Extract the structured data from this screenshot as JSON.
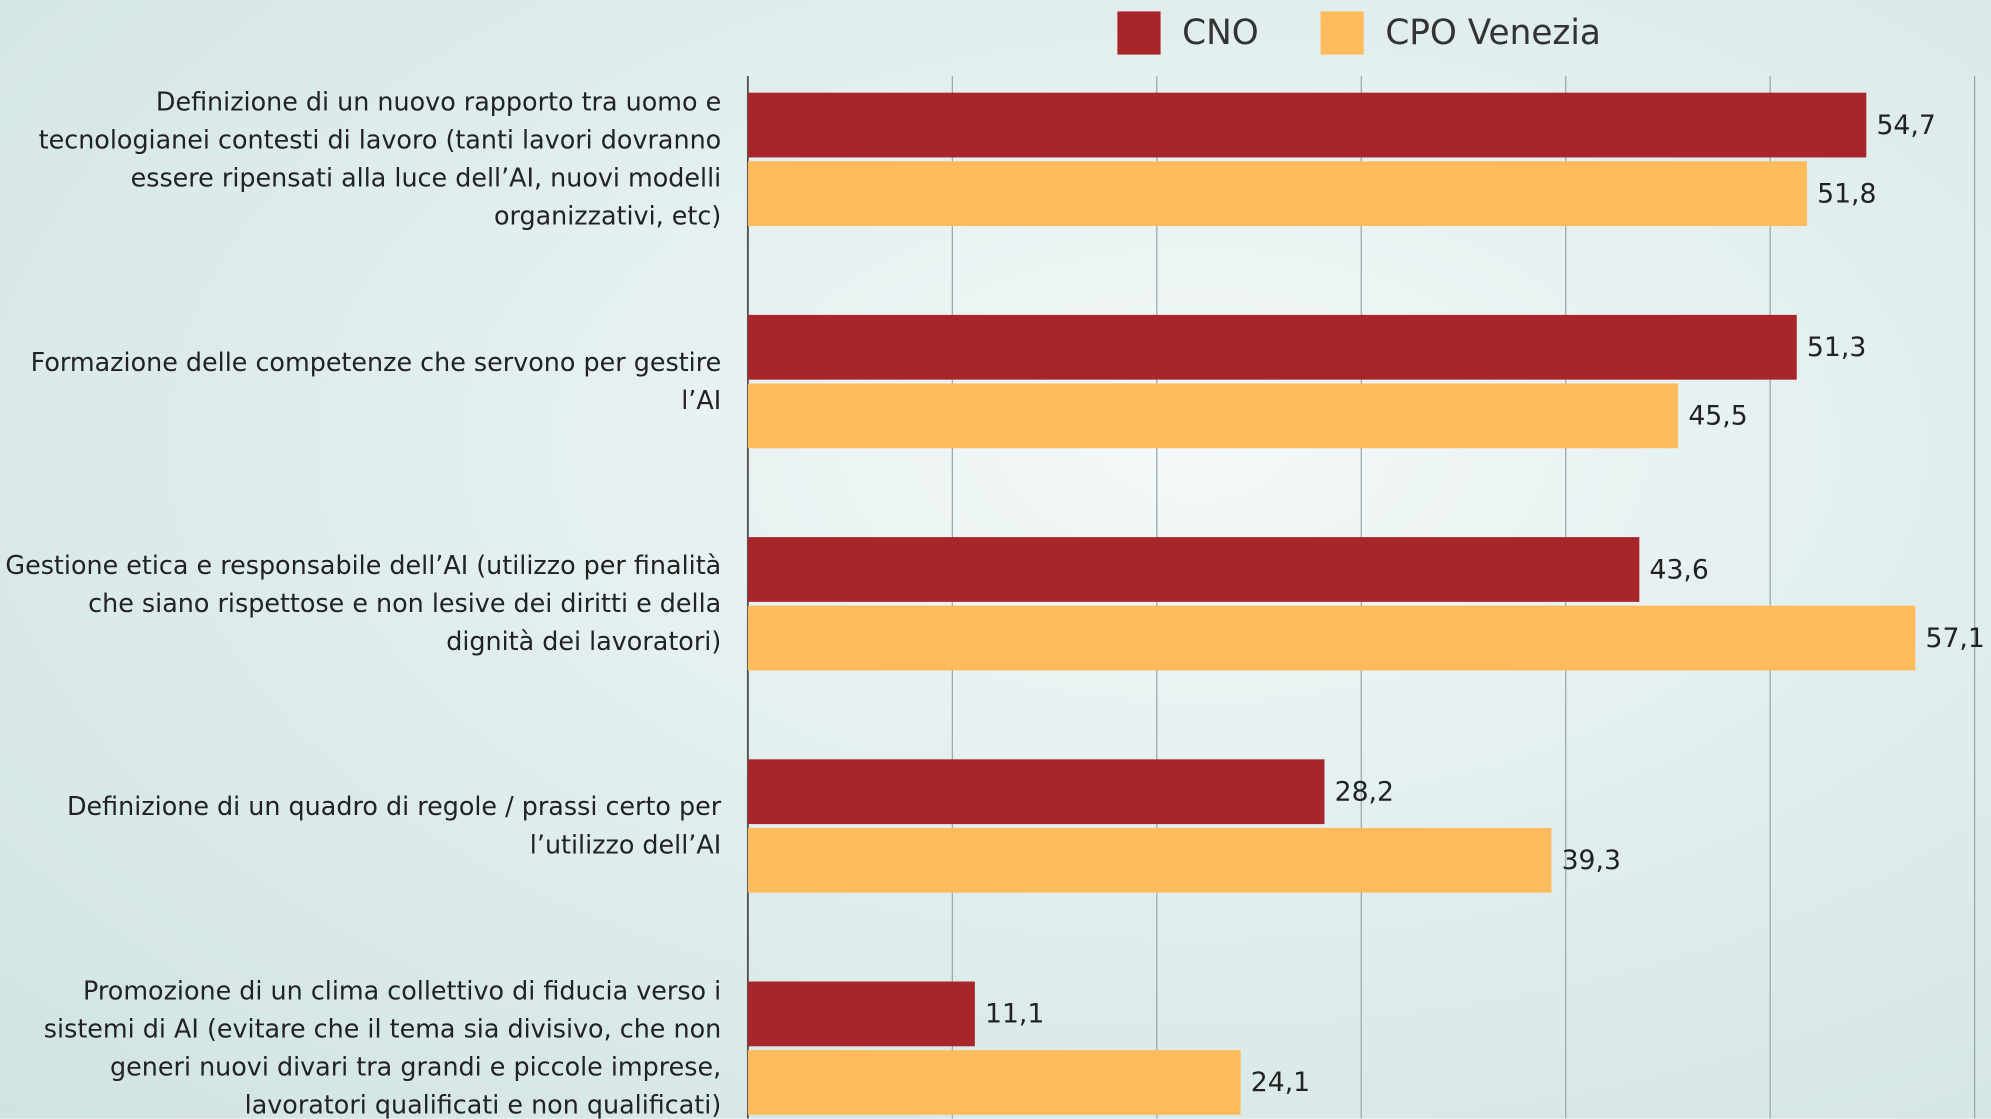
{
  "chart_data": {
    "type": "bar",
    "orientation": "horizontal",
    "categories": [
      "Definizione di un nuovo rapporto tra uomo e tecnologianei contesti di lavoro (tanti lavori dovranno essere ripensati alla luce dell’AI, nuovi modelli organizzativi, etc)",
      "Formazione delle competenze che servono per gestire l’AI",
      "Gestione etica e responsabile dell’AI (utilizzo per finalità che siano rispettose e non lesive dei diritti e della dignità dei lavoratori)",
      "Definizione di un quadro di regole / prassi certo per l’utilizzo dell’AI",
      "Promozione di un clima collettivo di fiducia verso i sistemi di AI (evitare che il tema sia divisivo, che non generi nuovi divari tra grandi e piccole imprese, lavoratori qualificati e non qualificati)"
    ],
    "series": [
      {
        "name": "CNO",
        "color": "#a8262a",
        "values": [
          54.7,
          51.3,
          43.6,
          28.2,
          11.1
        ],
        "value_labels": [
          "54,7",
          "51,3",
          "43,6",
          "28,2",
          "11,1"
        ]
      },
      {
        "name": "CPO Venezia",
        "color": "#ffbb5c",
        "values": [
          51.8,
          45.5,
          57.1,
          39.3,
          24.1
        ],
        "value_labels": [
          "51,8",
          "45,5",
          "57,1",
          "39,3",
          "24,1"
        ]
      }
    ],
    "xlim": [
      0,
      60.8
    ],
    "xticks": [
      0,
      10,
      20,
      30,
      40,
      50,
      60
    ],
    "grid": true,
    "legend": "top"
  }
}
